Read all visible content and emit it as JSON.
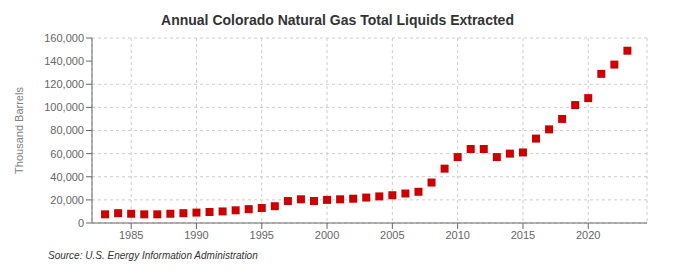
{
  "chart_data": {
    "type": "scatter",
    "title": "Annual Colorado Natural Gas Total Liquids Extracted",
    "ylabel": "Thousand Barrels",
    "source": "Source: U.S. Energy Information Administration",
    "color": "#cc0000",
    "marker": "square",
    "grid": true,
    "x": [
      1983,
      1984,
      1985,
      1986,
      1987,
      1988,
      1989,
      1990,
      1991,
      1992,
      1993,
      1994,
      1995,
      1996,
      1997,
      1998,
      1999,
      2000,
      2001,
      2002,
      2003,
      2004,
      2005,
      2006,
      2007,
      2008,
      2009,
      2010,
      2011,
      2012,
      2013,
      2014,
      2015,
      2016,
      2017,
      2018,
      2019,
      2020,
      2021,
      2022,
      2023
    ],
    "values": [
      7500,
      8500,
      8000,
      7500,
      7500,
      8000,
      8500,
      9000,
      9500,
      10000,
      11000,
      12000,
      13000,
      14500,
      19000,
      20500,
      19000,
      20000,
      20500,
      21000,
      22000,
      23000,
      24000,
      25500,
      27000,
      35000,
      47000,
      57000,
      64000,
      64000,
      57000,
      60000,
      61000,
      73000,
      81000,
      90000,
      102000,
      108000,
      129000,
      137000,
      149000
    ],
    "xlim": [
      1982,
      2024.5
    ],
    "xticks": [
      1985,
      1990,
      1995,
      2000,
      2005,
      2010,
      2015,
      2020
    ],
    "ylim": [
      0,
      160000
    ],
    "yticks": [
      0,
      {
        "value": 20000,
        "label": "20,000"
      },
      {
        "value": 40000,
        "label": "40,000"
      },
      {
        "value": 60000,
        "label": "60,000"
      },
      {
        "value": 80000,
        "label": "80,000"
      },
      {
        "value": 100000,
        "label": "100,000"
      },
      {
        "value": 120000,
        "label": "120,000"
      },
      {
        "value": 140000,
        "label": "140,000"
      },
      {
        "value": 160000,
        "label": "160,000"
      }
    ]
  }
}
